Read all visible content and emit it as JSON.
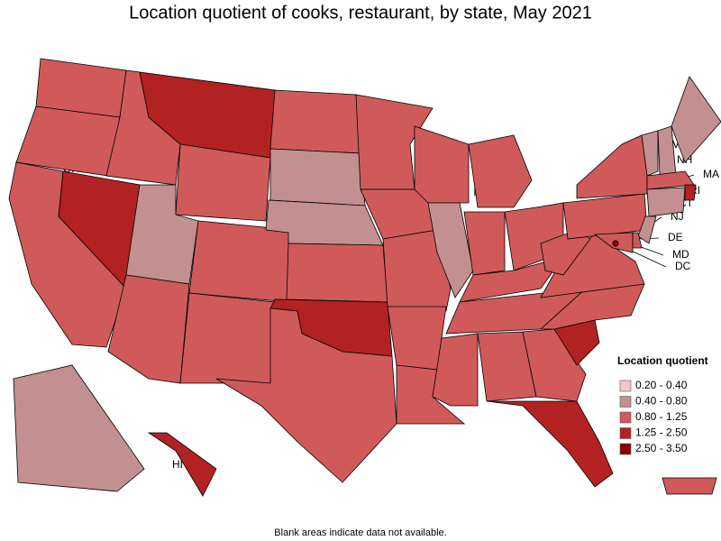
{
  "title": "Location quotient of cooks, restaurant, by state, May 2021",
  "states": [
    {
      "label": "WA",
      "color": "#d05a5a"
    },
    {
      "label": "OR",
      "color": "#d05a5a"
    },
    {
      "label": "CA",
      "color": "#d05a5a"
    },
    {
      "label": "NV",
      "color": "#b22222"
    },
    {
      "label": "ID",
      "color": "#d05a5a"
    },
    {
      "label": "MT",
      "color": "#b22222"
    },
    {
      "label": "WY",
      "color": "#d05a5a"
    },
    {
      "label": "UT",
      "color": "#c29090"
    },
    {
      "label": "CO",
      "color": "#d05a5a"
    },
    {
      "label": "AZ",
      "color": "#d05a5a"
    },
    {
      "label": "NM",
      "color": "#d05a5a"
    },
    {
      "label": "ND",
      "color": "#d05a5a"
    },
    {
      "label": "SD",
      "color": "#c29090"
    },
    {
      "label": "NE",
      "color": "#c29090"
    },
    {
      "label": "KS",
      "color": "#d05a5a"
    },
    {
      "label": "OK",
      "color": "#b22222"
    },
    {
      "label": "TX",
      "color": "#d05a5a"
    },
    {
      "label": "MN",
      "color": "#d05a5a"
    },
    {
      "label": "IA",
      "color": "#d05a5a"
    },
    {
      "label": "MO",
      "color": "#d05a5a"
    },
    {
      "label": "AR",
      "color": "#d05a5a"
    },
    {
      "label": "LA",
      "color": "#d05a5a"
    },
    {
      "label": "WI",
      "color": "#d05a5a"
    },
    {
      "label": "IL",
      "color": "#c29090"
    },
    {
      "label": "MI",
      "color": "#d05a5a"
    },
    {
      "label": "IN",
      "color": "#d05a5a"
    },
    {
      "label": "OH",
      "color": "#d05a5a"
    },
    {
      "label": "KY",
      "color": "#d05a5a"
    },
    {
      "label": "TN",
      "color": "#d05a5a"
    },
    {
      "label": "MS",
      "color": "#d05a5a"
    },
    {
      "label": "AL",
      "color": "#d05a5a"
    },
    {
      "label": "GA",
      "color": "#d05a5a"
    },
    {
      "label": "FL",
      "color": "#b22222"
    },
    {
      "label": "SC",
      "color": "#b22222"
    },
    {
      "label": "NC",
      "color": "#d05a5a"
    },
    {
      "label": "VA",
      "color": "#d05a5a"
    },
    {
      "label": "WV",
      "color": "#d05a5a"
    },
    {
      "label": "PA",
      "color": "#d05a5a"
    },
    {
      "label": "NY",
      "color": "#d05a5a"
    },
    {
      "label": "VT",
      "color": "#c29090"
    },
    {
      "label": "NH",
      "color": "#c29090"
    },
    {
      "label": "ME",
      "color": "#c29090"
    },
    {
      "label": "MA",
      "color": "#d05a5a"
    },
    {
      "label": "RI",
      "color": "#b22222"
    },
    {
      "label": "CT",
      "color": "#c29090"
    },
    {
      "label": "NJ",
      "color": "#c29090"
    },
    {
      "label": "DE",
      "color": "#d05a5a"
    },
    {
      "label": "MD",
      "color": "#d05a5a"
    },
    {
      "label": "DC",
      "color": "#8b0000"
    },
    {
      "label": "AK",
      "color": "#c29090"
    },
    {
      "label": "HI",
      "color": "#b22222"
    },
    {
      "label": "PR",
      "color": "#d05a5a"
    }
  ],
  "legend": {
    "title": "Location quotient",
    "items": [
      {
        "label": "0.20 - 0.40",
        "color": "#f4c6c6"
      },
      {
        "label": "0.40 - 0.80",
        "color": "#c29090"
      },
      {
        "label": "0.80 - 1.25",
        "color": "#d05a5a"
      },
      {
        "label": "1.25 - 2.50",
        "color": "#b22222"
      },
      {
        "label": "2.50 - 3.50",
        "color": "#8b0000"
      }
    ]
  },
  "footnote": "Blank areas indicate data not available."
}
